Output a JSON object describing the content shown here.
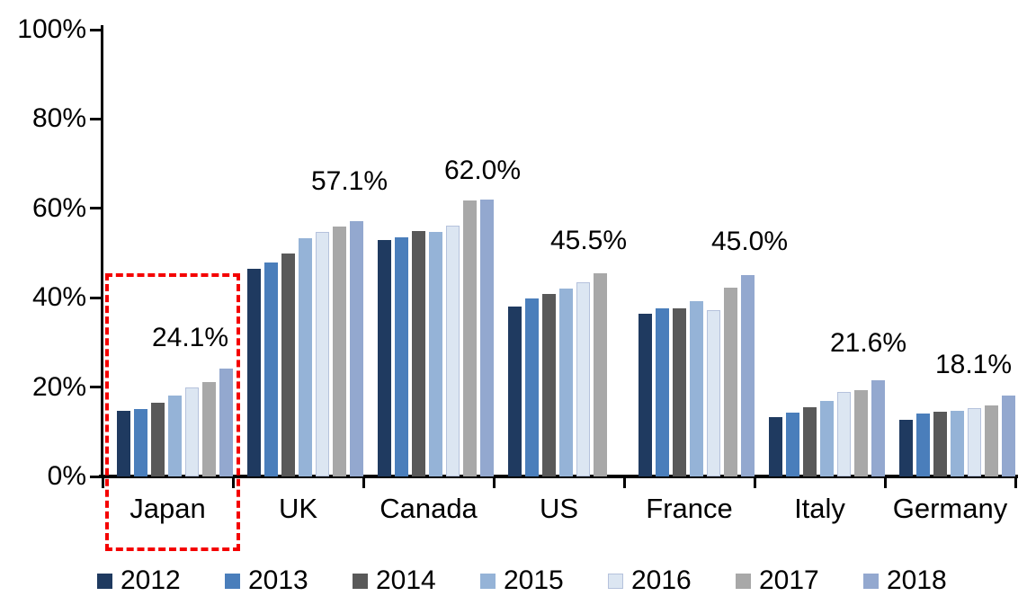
{
  "chart_data": {
    "type": "bar",
    "title": "",
    "xlabel": "",
    "ylabel": "",
    "categories": [
      "Japan",
      "UK",
      "Canada",
      "US",
      "France",
      "Italy",
      "Germany"
    ],
    "series": [
      {
        "name": "2012",
        "color": "#1f3a60",
        "values": [
          14.7,
          46.4,
          53.0,
          38.0,
          36.5,
          13.3,
          12.7
        ]
      },
      {
        "name": "2013",
        "color": "#4a7ebb",
        "values": [
          15.0,
          47.9,
          53.5,
          39.8,
          37.7,
          14.3,
          14.0
        ]
      },
      {
        "name": "2014",
        "color": "#595959",
        "values": [
          16.5,
          50.0,
          54.9,
          40.8,
          37.6,
          15.5,
          14.4
        ]
      },
      {
        "name": "2015",
        "color": "#95b3d7",
        "values": [
          18.1,
          53.4,
          54.7,
          42.0,
          39.3,
          16.9,
          14.7
        ]
      },
      {
        "name": "2016",
        "color": "#dce6f2",
        "values": [
          20.0,
          54.7,
          56.2,
          43.4,
          37.3,
          19.0,
          15.3
        ]
      },
      {
        "name": "2017",
        "color": "#a8a8a8",
        "values": [
          21.2,
          56.0,
          61.8,
          45.5,
          42.3,
          19.4,
          15.9
        ]
      },
      {
        "name": "2018",
        "color": "#93a8cf",
        "values": [
          24.1,
          57.1,
          62.0,
          null,
          45.0,
          21.6,
          18.1
        ]
      }
    ],
    "value_labels": [
      {
        "category": "Japan",
        "text": "24.1%"
      },
      {
        "category": "UK",
        "text": "57.1%"
      },
      {
        "category": "Canada",
        "text": "62.0%"
      },
      {
        "category": "US",
        "text": "45.5%"
      },
      {
        "category": "France",
        "text": "45.0%"
      },
      {
        "category": "Italy",
        "text": "21.6%"
      },
      {
        "category": "Germany",
        "text": "18.1%"
      }
    ],
    "y_axis": {
      "min": 0,
      "max": 100,
      "tick_labels": [
        "0%",
        "20%",
        "40%",
        "60%",
        "80%",
        "100%"
      ],
      "tick_values": [
        0,
        20,
        40,
        60,
        80,
        100
      ]
    },
    "legend": {
      "position": "bottom",
      "entries": [
        "2012",
        "2013",
        "2014",
        "2015",
        "2016",
        "2017",
        "2018"
      ]
    },
    "grid": false,
    "highlight": {
      "category": "Japan",
      "style": "dashed-rectangle",
      "color": "#f40000"
    },
    "colors": {
      "axis": "#000000",
      "background": "#ffffff",
      "light_bar_edge": "#b5c2dc"
    }
  }
}
